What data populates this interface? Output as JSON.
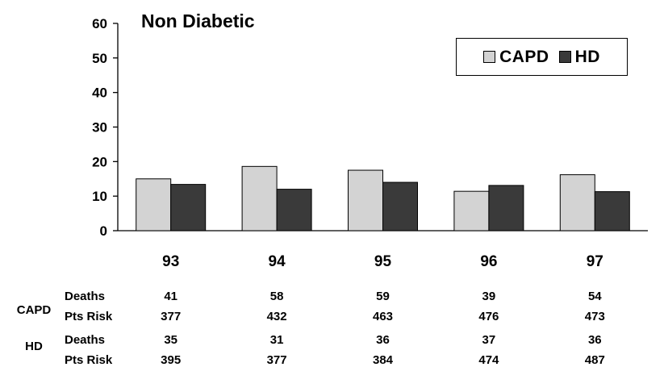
{
  "chart_data": {
    "type": "bar",
    "title": "Non Diabetic",
    "categories": [
      "93",
      "94",
      "95",
      "96",
      "97"
    ],
    "series": [
      {
        "name": "CAPD",
        "color": "#d3d3d3",
        "values": [
          15,
          18.6,
          17.5,
          11.4,
          16.2
        ]
      },
      {
        "name": "HD",
        "color": "#3a3a3a",
        "values": [
          13.4,
          12,
          14,
          13.1,
          11.3
        ]
      }
    ],
    "ylim": [
      0,
      60
    ],
    "yticks": [
      "0",
      "10",
      "20",
      "30",
      "40",
      "50",
      "60"
    ],
    "grid": false,
    "legend": "top-right",
    "table": {
      "rows": [
        {
          "group": "CAPD",
          "label": "Deaths",
          "values": [
            "41",
            "58",
            "59",
            "39",
            "54"
          ]
        },
        {
          "group": "",
          "label": "Pts Risk",
          "values": [
            "377",
            "432",
            "463",
            "476",
            "473"
          ]
        },
        {
          "group": "HD",
          "label": "Deaths",
          "values": [
            "35",
            "31",
            "36",
            "37",
            "36"
          ]
        },
        {
          "group": "",
          "label": "Pts Risk",
          "values": [
            "395",
            "377",
            "384",
            "474",
            "487"
          ]
        }
      ]
    }
  }
}
